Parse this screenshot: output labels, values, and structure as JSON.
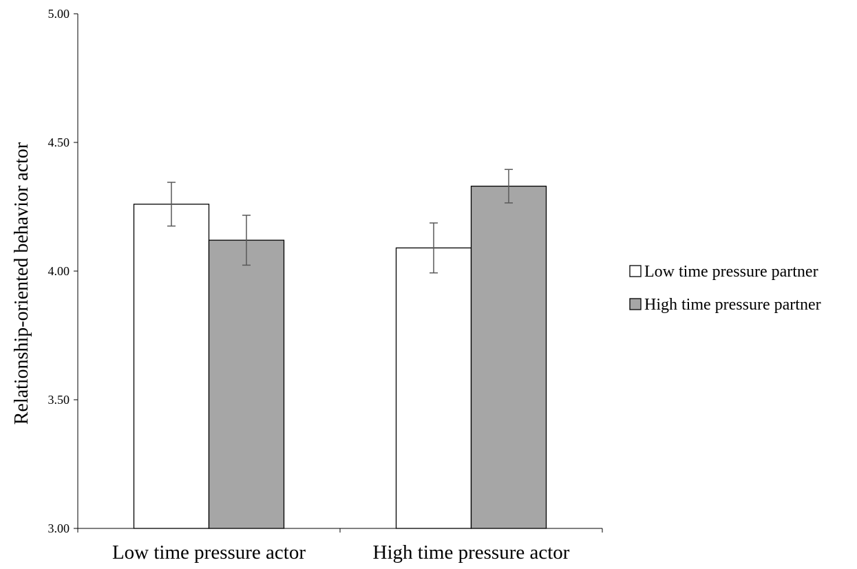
{
  "chart_data": {
    "type": "bar",
    "title": "",
    "xlabel": "",
    "ylabel": "Relationship-oriented behavior actor",
    "categories": [
      "Low time pressure actor",
      "High time pressure actor"
    ],
    "series": [
      {
        "name": "Low time pressure partner",
        "color": "#ffffff",
        "values": [
          4.26,
          4.09
        ],
        "errors": [
          0.085,
          0.097
        ]
      },
      {
        "name": "High time pressure partner",
        "color": "#a6a6a6",
        "values": [
          4.12,
          4.33
        ],
        "errors": [
          0.097,
          0.065
        ]
      }
    ],
    "ylim": [
      3.0,
      5.0
    ],
    "yticks": [
      3.0,
      3.5,
      4.0,
      4.5,
      5.0
    ],
    "ytick_labels": [
      "3.00",
      "3.50",
      "4.00",
      "4.50",
      "5.00"
    ],
    "grid": false,
    "legend_position": "right"
  }
}
